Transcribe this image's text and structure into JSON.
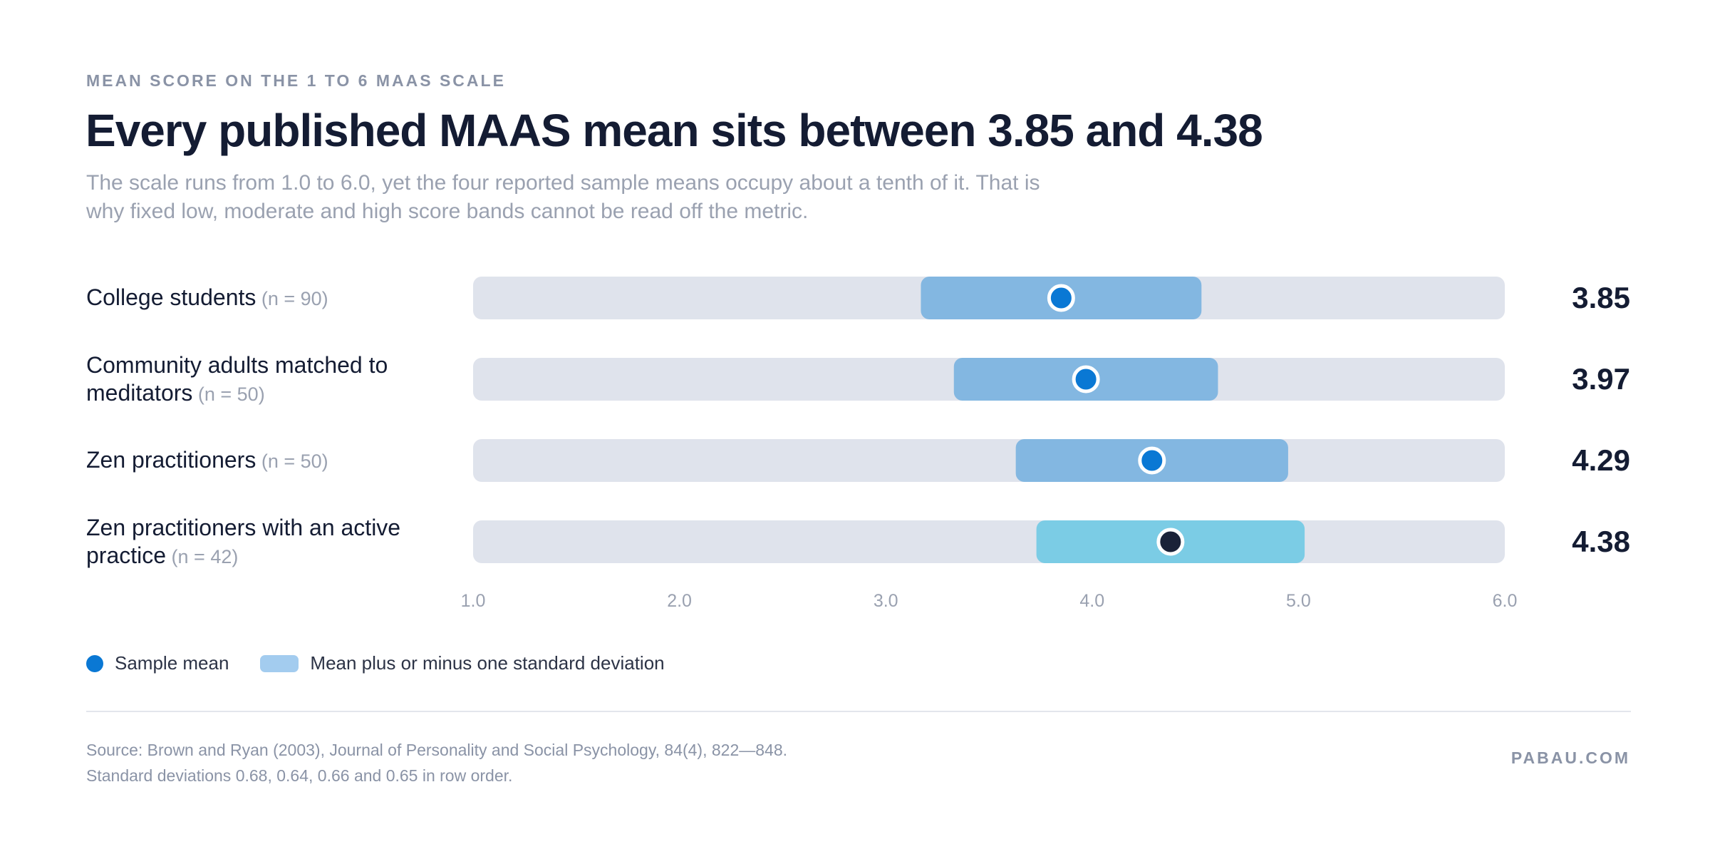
{
  "header": {
    "eyebrow": "MEAN SCORE ON THE 1 TO 6 MAAS SCALE",
    "title": "Every published MAAS mean sits between 3.85 and 4.38",
    "subtitle": "The scale runs from 1.0 to 6.0, yet the four reported sample means occupy about a tenth of it. That is why fixed low, moderate and high score bands cannot be read off the metric."
  },
  "chart_data": {
    "type": "dot-range",
    "xlim": [
      1.0,
      6.0
    ],
    "ticks": [
      "1.0",
      "2.0",
      "3.0",
      "4.0",
      "5.0",
      "6.0"
    ],
    "grid": false,
    "legend_position": "bottom-left",
    "rows": [
      {
        "label": "College students",
        "n_label": "(n = 90)",
        "mean": 3.85,
        "value_label": "3.85",
        "sd": 0.68,
        "low": 3.17,
        "high": 4.53,
        "highlight": false
      },
      {
        "label": "Community adults matched to meditators",
        "n_label": "(n = 50)",
        "mean": 3.97,
        "value_label": "3.97",
        "sd": 0.64,
        "low": 3.33,
        "high": 4.61,
        "highlight": false
      },
      {
        "label": "Zen practitioners",
        "n_label": "(n = 50)",
        "mean": 4.29,
        "value_label": "4.29",
        "sd": 0.66,
        "low": 3.63,
        "high": 4.95,
        "highlight": false
      },
      {
        "label": "Zen practitioners with an active practice",
        "n_label": "(n = 42)",
        "mean": 4.38,
        "value_label": "4.38",
        "sd": 0.65,
        "low": 3.73,
        "high": 5.03,
        "highlight": true
      }
    ],
    "colors": {
      "track": "#dfe3ec",
      "band": "#83b7e1",
      "band_highlight": "#7accе5",
      "dot": "#0a78d4",
      "dot_highlight": "#1a2238",
      "dot_stroke": "#ffffff"
    }
  },
  "legend": {
    "mean_label": "Sample mean",
    "band_label": "Mean plus or minus one standard deviation"
  },
  "footer": {
    "source_line1": "Source: Brown and Ryan (2003), Journal of Personality and Social Psychology, 84(4), 822—848.",
    "source_line2": "Standard deviations 0.68, 0.64, 0.66 and 0.65 in row order.",
    "brand": "PABAU.COM"
  }
}
